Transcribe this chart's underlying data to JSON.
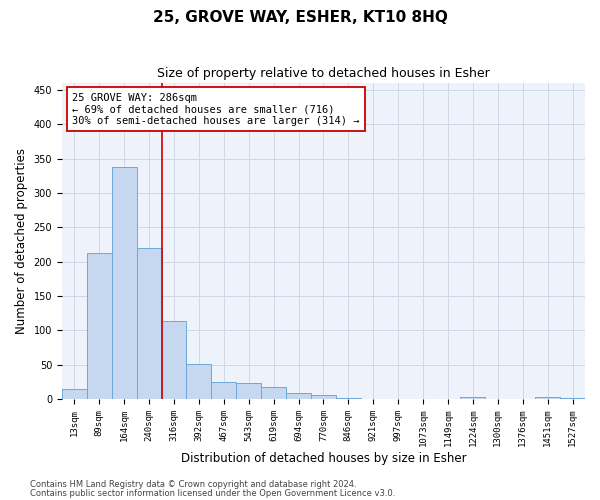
{
  "title": "25, GROVE WAY, ESHER, KT10 8HQ",
  "subtitle": "Size of property relative to detached houses in Esher",
  "xlabel": "Distribution of detached houses by size in Esher",
  "ylabel": "Number of detached properties",
  "categories": [
    "13sqm",
    "89sqm",
    "164sqm",
    "240sqm",
    "316sqm",
    "392sqm",
    "467sqm",
    "543sqm",
    "619sqm",
    "694sqm",
    "770sqm",
    "846sqm",
    "921sqm",
    "997sqm",
    "1073sqm",
    "1149sqm",
    "1224sqm",
    "1300sqm",
    "1376sqm",
    "1451sqm",
    "1527sqm"
  ],
  "values": [
    15,
    213,
    338,
    220,
    113,
    51,
    25,
    24,
    17,
    9,
    6,
    2,
    0,
    0,
    0,
    0,
    3,
    0,
    0,
    3,
    2
  ],
  "bar_color": "#c5d8f0",
  "bar_edge_color": "#6ea8d8",
  "vline_x": 3.5,
  "vline_color": "#cc0000",
  "annotation_line1": "25 GROVE WAY: 286sqm",
  "annotation_line2": "← 69% of detached houses are smaller (716)",
  "annotation_line3": "30% of semi-detached houses are larger (314) →",
  "annotation_box_color": "#ffffff",
  "annotation_box_edge": "#cc0000",
  "ylim": [
    0,
    460
  ],
  "yticks": [
    0,
    50,
    100,
    150,
    200,
    250,
    300,
    350,
    400,
    450
  ],
  "grid_color": "#d0d8e8",
  "bg_color": "#eef2fa",
  "footer1": "Contains HM Land Registry data © Crown copyright and database right 2024.",
  "footer2": "Contains public sector information licensed under the Open Government Licence v3.0.",
  "title_fontsize": 11,
  "subtitle_fontsize": 9,
  "tick_fontsize": 6.5,
  "label_fontsize": 8.5,
  "annotation_fontsize": 7.5,
  "footer_fontsize": 6
}
